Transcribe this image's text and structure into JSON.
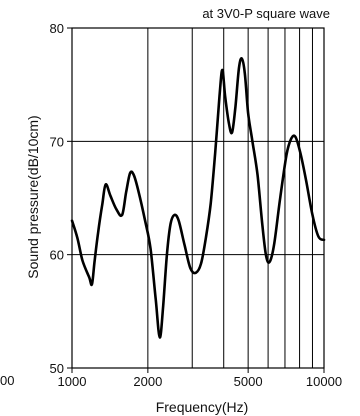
{
  "chart_data": {
    "type": "line",
    "annotation": "at 3V0-P square wave",
    "xlabel": "Frequency(Hz)",
    "ylabel": "Sound pressure(dB/10cm)",
    "x_scale": "log",
    "xlim": [
      1000,
      10000
    ],
    "ylim": [
      50,
      80
    ],
    "grid": true,
    "x_gridlines": [
      2000,
      3000,
      4000,
      5000,
      6000,
      7000,
      8000,
      9000
    ],
    "y_gridlines": [
      60,
      70
    ],
    "x_ticks": [
      {
        "value": 1000,
        "label": "1000"
      },
      {
        "value": 2000,
        "label": "2000"
      },
      {
        "value": 5000,
        "label": "5000"
      },
      {
        "value": 10000,
        "label": "10000"
      }
    ],
    "y_ticks": [
      {
        "value": 50,
        "label": "50"
      },
      {
        "value": 60,
        "label": "60"
      },
      {
        "value": 70,
        "label": "70"
      },
      {
        "value": 80,
        "label": "80"
      }
    ],
    "left_cut_label": "00",
    "series": [
      {
        "color": "#000000",
        "points": [
          [
            1000,
            63
          ],
          [
            1050,
            61.5
          ],
          [
            1100,
            59.5
          ],
          [
            1170,
            58
          ],
          [
            1200,
            57.4
          ],
          [
            1230,
            59.5
          ],
          [
            1270,
            62
          ],
          [
            1320,
            64.5
          ],
          [
            1360,
            66.2
          ],
          [
            1420,
            65.2
          ],
          [
            1500,
            64
          ],
          [
            1580,
            63.5
          ],
          [
            1640,
            65.5
          ],
          [
            1700,
            67.2
          ],
          [
            1760,
            67
          ],
          [
            1840,
            65.5
          ],
          [
            1950,
            63
          ],
          [
            2050,
            60.5
          ],
          [
            2150,
            56
          ],
          [
            2230,
            52.7
          ],
          [
            2300,
            55.5
          ],
          [
            2380,
            60
          ],
          [
            2460,
            62.7
          ],
          [
            2550,
            63.5
          ],
          [
            2650,
            63
          ],
          [
            2800,
            60.8
          ],
          [
            2950,
            58.8
          ],
          [
            3100,
            58.4
          ],
          [
            3250,
            59.2
          ],
          [
            3400,
            61.5
          ],
          [
            3550,
            64.5
          ],
          [
            3700,
            69
          ],
          [
            3850,
            74
          ],
          [
            3950,
            76.3
          ],
          [
            4050,
            74
          ],
          [
            4200,
            71.5
          ],
          [
            4320,
            70.8
          ],
          [
            4450,
            73
          ],
          [
            4600,
            76.5
          ],
          [
            4720,
            77.3
          ],
          [
            4850,
            76
          ],
          [
            5000,
            72.5
          ],
          [
            5200,
            70
          ],
          [
            5450,
            67
          ],
          [
            5700,
            62.5
          ],
          [
            5900,
            59.8
          ],
          [
            6100,
            59.4
          ],
          [
            6350,
            61
          ],
          [
            6700,
            65
          ],
          [
            7100,
            68.8
          ],
          [
            7400,
            70.2
          ],
          [
            7700,
            70.4
          ],
          [
            8050,
            69
          ],
          [
            8500,
            66.5
          ],
          [
            9000,
            63.5
          ],
          [
            9500,
            61.6
          ],
          [
            10000,
            61.3
          ]
        ]
      }
    ]
  }
}
